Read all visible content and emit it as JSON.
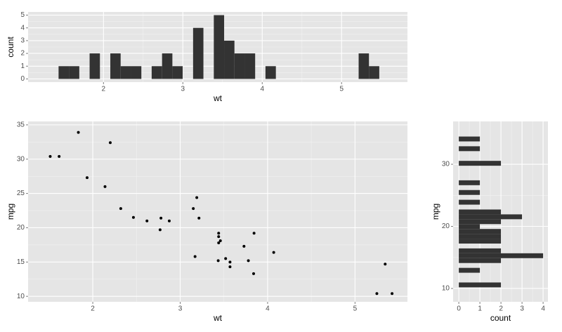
{
  "chart_data": [
    {
      "type": "histogram",
      "orientation": "vertical",
      "xlabel": "wt",
      "ylabel": "count",
      "bins": [
        1.434,
        1.564,
        1.695,
        1.825,
        1.955,
        2.086,
        2.216,
        2.347,
        2.477,
        2.607,
        2.738,
        2.868,
        2.998,
        3.129,
        3.259,
        3.39,
        3.52,
        3.65,
        3.781,
        3.911,
        4.041,
        4.172,
        4.302,
        4.432,
        4.563,
        4.693,
        4.823,
        4.954,
        5.084,
        5.215,
        5.345,
        5.475
      ],
      "counts": [
        1,
        1,
        0,
        2,
        0,
        2,
        1,
        1,
        0,
        1,
        2,
        1,
        0,
        4,
        0,
        5,
        3,
        2,
        2,
        0,
        1,
        0,
        0,
        0,
        0,
        0,
        0,
        0,
        0,
        2,
        1
      ],
      "color": "#333333",
      "xlim": [
        1.05,
        5.83
      ],
      "ylim": [
        -0.25,
        5.25
      ],
      "xticks": [
        2,
        3,
        4,
        5
      ],
      "yticks": [
        0,
        1,
        2,
        3,
        4,
        5
      ],
      "grid": true
    },
    {
      "type": "scatter",
      "xlabel": "wt",
      "ylabel": "mpg",
      "x": [
        2.62,
        2.875,
        2.32,
        3.215,
        3.44,
        3.46,
        3.57,
        3.19,
        3.15,
        3.44,
        3.44,
        4.07,
        3.73,
        3.78,
        5.25,
        5.424,
        5.345,
        2.2,
        1.615,
        1.835,
        2.465,
        3.52,
        3.435,
        3.84,
        3.845,
        1.935,
        2.14,
        1.513,
        3.17,
        2.77,
        3.57,
        2.78
      ],
      "y": [
        21,
        21,
        22.8,
        21.4,
        18.7,
        18.1,
        14.3,
        24.4,
        22.8,
        19.2,
        17.8,
        16.4,
        17.3,
        15.2,
        10.4,
        10.4,
        14.7,
        32.4,
        30.4,
        33.9,
        21.5,
        15.5,
        15.2,
        13.3,
        19.2,
        27.3,
        26,
        30.4,
        15.8,
        19.7,
        15,
        21.4
      ],
      "color": "#000000",
      "xlim": [
        1.26,
        5.6
      ],
      "ylim": [
        9.2,
        35.5
      ],
      "xticks": [
        2,
        3,
        4,
        5
      ],
      "yticks": [
        10,
        15,
        20,
        25,
        30,
        35
      ],
      "grid": true
    },
    {
      "type": "histogram",
      "orientation": "horizontal",
      "xlabel": "count",
      "ylabel": "mpg",
      "bins": [
        10.183,
        10.966,
        11.75,
        12.533,
        13.316,
        14.1,
        14.883,
        15.666,
        16.45,
        17.233,
        18.016,
        18.8,
        19.583,
        20.366,
        21.15,
        21.933,
        22.716,
        23.5,
        24.283,
        25.066,
        25.85,
        26.633,
        27.416,
        28.2,
        28.983,
        29.766,
        30.55,
        31.333,
        32.116,
        32.9,
        33.683,
        34.466
      ],
      "counts": [
        2,
        0,
        0,
        1,
        0,
        2,
        4,
        2,
        0,
        2,
        2,
        2,
        1,
        2,
        3,
        2,
        0,
        1,
        0,
        1,
        0,
        1,
        0,
        0,
        0,
        2,
        0,
        0,
        1,
        0,
        1
      ],
      "color": "#333333",
      "xlim": [
        -0.27,
        4.23
      ],
      "ylim": [
        7.85,
        36.9
      ],
      "xticks": [
        0,
        1,
        2,
        3,
        4
      ],
      "yticks": [
        10,
        20,
        30
      ],
      "grid": true
    }
  ]
}
